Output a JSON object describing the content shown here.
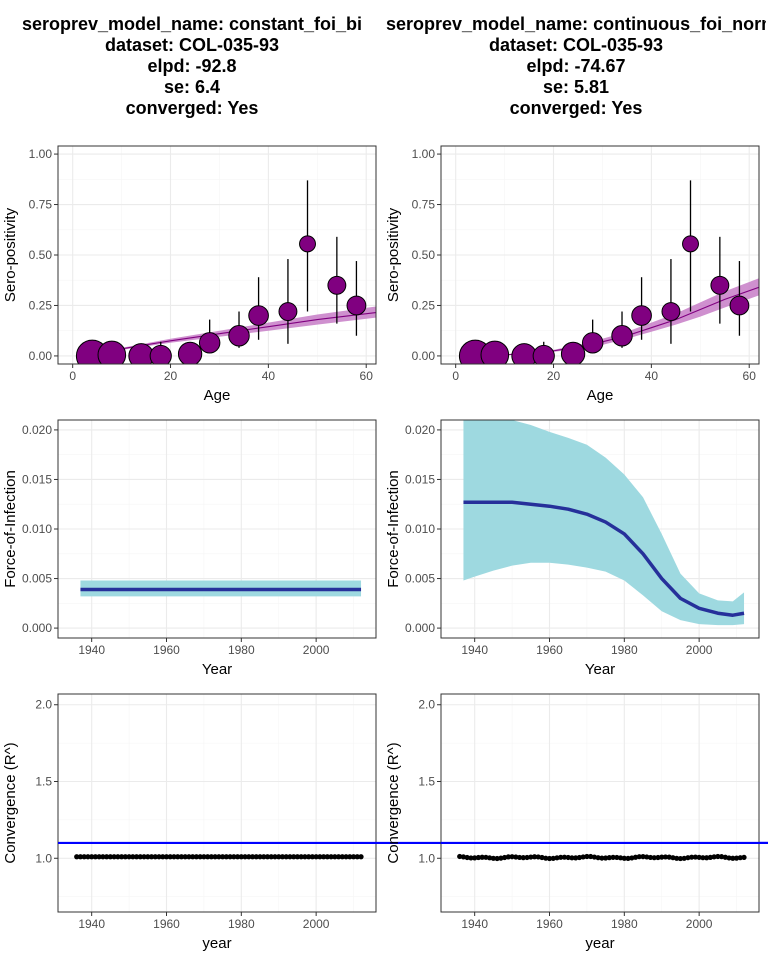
{
  "models": [
    {
      "title_lines": [
        "seroprev_model_name: constant_foi_bi",
        "dataset: COL-035-93",
        "elpd: -92.8",
        "se: 6.4",
        "converged: Yes"
      ],
      "sero": {
        "type": "scatter",
        "xlabel": "Age",
        "ylabel": "Sero-positivity",
        "xlim": [
          -3,
          62
        ],
        "ylim": [
          -0.04,
          1.04
        ],
        "xticks": [
          0,
          20,
          40,
          60
        ],
        "yticks": [
          "0.00",
          "0.25",
          "0.50",
          "0.75",
          "1.00"
        ],
        "points": [
          {
            "age": 4,
            "p": 0.0,
            "lo": 0.0,
            "hi": 0.0,
            "n": 30
          },
          {
            "age": 8,
            "p": 0.005,
            "lo": 0.0,
            "hi": 0.02,
            "n": 22
          },
          {
            "age": 14,
            "p": 0.0,
            "lo": 0.0,
            "hi": 0.0,
            "n": 17
          },
          {
            "age": 18,
            "p": 0.0,
            "lo": 0.0,
            "hi": 0.07,
            "n": 12
          },
          {
            "age": 24,
            "p": 0.01,
            "lo": 0.0,
            "hi": 0.05,
            "n": 15
          },
          {
            "age": 28,
            "p": 0.065,
            "lo": 0.02,
            "hi": 0.18,
            "n": 11
          },
          {
            "age": 34,
            "p": 0.1,
            "lo": 0.04,
            "hi": 0.22,
            "n": 11
          },
          {
            "age": 38,
            "p": 0.2,
            "lo": 0.08,
            "hi": 0.39,
            "n": 10
          },
          {
            "age": 44,
            "p": 0.22,
            "lo": 0.06,
            "hi": 0.48,
            "n": 8
          },
          {
            "age": 48,
            "p": 0.555,
            "lo": 0.22,
            "hi": 0.87,
            "n": 6
          },
          {
            "age": 54,
            "p": 0.35,
            "lo": 0.16,
            "hi": 0.59,
            "n": 8
          },
          {
            "age": 58,
            "p": 0.25,
            "lo": 0.1,
            "hi": 0.47,
            "n": 9
          }
        ],
        "fit": {
          "age": [
            1,
            10,
            20,
            30,
            40,
            50,
            62
          ],
          "mid": [
            0.0,
            0.035,
            0.075,
            0.11,
            0.145,
            0.18,
            0.215
          ],
          "lo": [
            0.0,
            0.03,
            0.065,
            0.095,
            0.125,
            0.155,
            0.19
          ],
          "hi": [
            0.0,
            0.04,
            0.085,
            0.125,
            0.165,
            0.205,
            0.245
          ]
        }
      },
      "foi": {
        "type": "line",
        "xlabel": "Year",
        "ylabel": "Force-of-Infection",
        "xlim": [
          1931,
          2016
        ],
        "ylim": [
          -0.001,
          0.021
        ],
        "xticks": [
          1940,
          1960,
          1980,
          2000
        ],
        "yticks": [
          "0.000",
          "0.005",
          "0.010",
          "0.015",
          "0.020"
        ],
        "year": [
          1937,
          2012
        ],
        "mid": [
          0.0039,
          0.0039
        ],
        "lo": [
          0.0032,
          0.0032
        ],
        "hi": [
          0.0048,
          0.0048
        ]
      },
      "rhat": {
        "type": "scatter",
        "xlabel": "year",
        "ylabel": "Convergence (R^)",
        "xlim": [
          1931,
          2016
        ],
        "ylim": [
          0.65,
          2.07
        ],
        "xticks": [
          1940,
          1960,
          1980,
          2000
        ],
        "yticks": [
          "1.0",
          "1.5",
          "2.0"
        ],
        "threshold": 1.1,
        "year_start": 1936,
        "year_end": 2012,
        "value": 1.01,
        "wobble": false
      }
    },
    {
      "title_lines": [
        "seroprev_model_name: continuous_foi_normal_",
        "dataset: COL-035-93",
        "elpd: -74.67",
        "se: 5.81",
        "converged: Yes"
      ],
      "sero": {
        "type": "scatter",
        "xlabel": "Age",
        "ylabel": "Sero-positivity",
        "xlim": [
          -3,
          62
        ],
        "ylim": [
          -0.04,
          1.04
        ],
        "xticks": [
          0,
          20,
          40,
          60
        ],
        "yticks": [
          "0.00",
          "0.25",
          "0.50",
          "0.75",
          "1.00"
        ],
        "points": [
          {
            "age": 4,
            "p": 0.0,
            "lo": 0.0,
            "hi": 0.0,
            "n": 30
          },
          {
            "age": 8,
            "p": 0.005,
            "lo": 0.0,
            "hi": 0.02,
            "n": 22
          },
          {
            "age": 14,
            "p": 0.0,
            "lo": 0.0,
            "hi": 0.0,
            "n": 17
          },
          {
            "age": 18,
            "p": 0.0,
            "lo": 0.0,
            "hi": 0.07,
            "n": 12
          },
          {
            "age": 24,
            "p": 0.01,
            "lo": 0.0,
            "hi": 0.05,
            "n": 15
          },
          {
            "age": 28,
            "p": 0.065,
            "lo": 0.02,
            "hi": 0.18,
            "n": 11
          },
          {
            "age": 34,
            "p": 0.1,
            "lo": 0.04,
            "hi": 0.22,
            "n": 11
          },
          {
            "age": 38,
            "p": 0.2,
            "lo": 0.08,
            "hi": 0.39,
            "n": 10
          },
          {
            "age": 44,
            "p": 0.22,
            "lo": 0.06,
            "hi": 0.48,
            "n": 8
          },
          {
            "age": 48,
            "p": 0.555,
            "lo": 0.22,
            "hi": 0.87,
            "n": 6
          },
          {
            "age": 54,
            "p": 0.35,
            "lo": 0.16,
            "hi": 0.59,
            "n": 8
          },
          {
            "age": 58,
            "p": 0.25,
            "lo": 0.1,
            "hi": 0.47,
            "n": 9
          }
        ],
        "fit": {
          "age": [
            1,
            10,
            20,
            25,
            30,
            35,
            40,
            45,
            50,
            55,
            62
          ],
          "mid": [
            0.0,
            0.005,
            0.025,
            0.045,
            0.07,
            0.1,
            0.14,
            0.18,
            0.23,
            0.28,
            0.34
          ],
          "lo": [
            0.0,
            0.004,
            0.02,
            0.035,
            0.055,
            0.085,
            0.12,
            0.155,
            0.195,
            0.24,
            0.3
          ],
          "hi": [
            0.0,
            0.007,
            0.03,
            0.055,
            0.085,
            0.12,
            0.165,
            0.21,
            0.265,
            0.32,
            0.385
          ]
        }
      },
      "foi": {
        "type": "line",
        "xlabel": "Year",
        "ylabel": "Force-of-Infection",
        "xlim": [
          1931,
          2016
        ],
        "ylim": [
          -0.001,
          0.021
        ],
        "xticks": [
          1940,
          1960,
          1980,
          2000
        ],
        "yticks": [
          "0.000",
          "0.005",
          "0.010",
          "0.015",
          "0.020"
        ],
        "year": [
          1937,
          1940,
          1945,
          1950,
          1955,
          1960,
          1965,
          1970,
          1975,
          1980,
          1985,
          1990,
          1995,
          2000,
          2005,
          2009,
          2012
        ],
        "mid": [
          0.0127,
          0.0127,
          0.0127,
          0.0127,
          0.0125,
          0.0123,
          0.012,
          0.0115,
          0.0107,
          0.0095,
          0.0075,
          0.005,
          0.003,
          0.002,
          0.0015,
          0.0013,
          0.0015
        ],
        "lo": [
          0.0048,
          0.0052,
          0.0058,
          0.0063,
          0.0066,
          0.0066,
          0.0064,
          0.0061,
          0.0057,
          0.0048,
          0.0033,
          0.0017,
          0.0008,
          0.0004,
          0.0003,
          0.0003,
          0.0004
        ],
        "hi": [
          0.021,
          0.021,
          0.021,
          0.021,
          0.0205,
          0.0198,
          0.0192,
          0.0185,
          0.0172,
          0.0155,
          0.0132,
          0.0095,
          0.0055,
          0.0035,
          0.0028,
          0.0027,
          0.0036
        ]
      },
      "rhat": {
        "type": "scatter",
        "xlabel": "year",
        "ylabel": "Convergence (R^)",
        "xlim": [
          1931,
          2016
        ],
        "ylim": [
          0.65,
          2.07
        ],
        "xticks": [
          1940,
          1960,
          1980,
          2000
        ],
        "yticks": [
          "1.0",
          "1.5",
          "2.0"
        ],
        "threshold": 1.1,
        "year_start": 1936,
        "year_end": 2012,
        "value": 1.005,
        "wobble": true
      }
    }
  ],
  "colors": {
    "point_fill": "#800080",
    "sero_fit_line": "#800080",
    "sero_ribbon": "#C77CC7",
    "foi_line": "#26309A",
    "foi_ribbon": "#9ED9E0",
    "rhat_point": "#000000",
    "threshold_line": "#0000FF",
    "grid_major": "#EBEBEB",
    "grid_minor": "#F5F5F5",
    "panel_border": "#333333",
    "tick_text": "#4D4D4D"
  }
}
